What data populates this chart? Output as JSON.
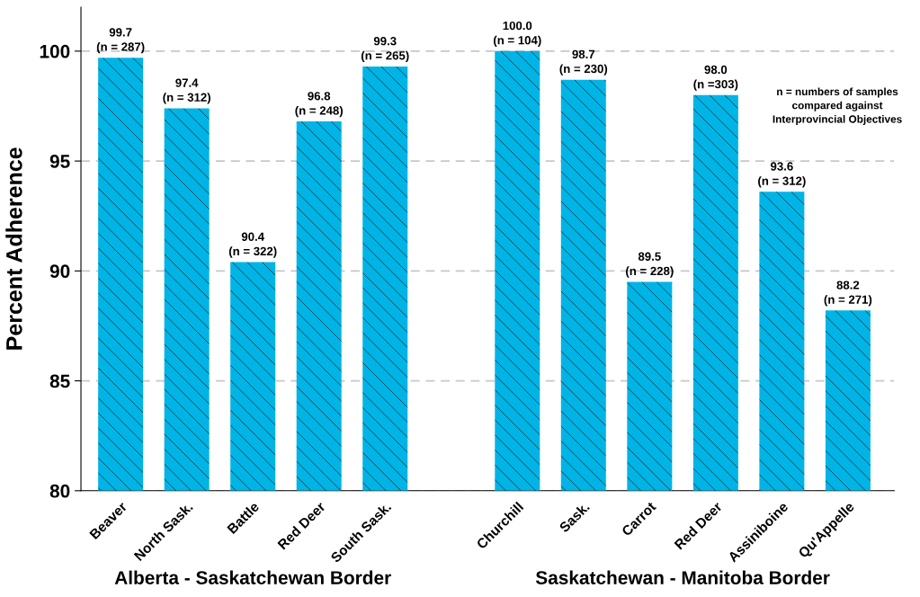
{
  "chart_data": {
    "type": "bar",
    "ylabel": "Percent Adherence",
    "categories": [
      "Beaver",
      "North Sask.",
      "Battle",
      "Red Deer",
      "South Sask.",
      null,
      "Churchill",
      "Sask.",
      "Carrot",
      "Red Deer",
      "Assiniboine",
      "Qu'Appelle"
    ],
    "values": [
      99.7,
      97.4,
      90.4,
      96.8,
      99.3,
      null,
      100.0,
      98.7,
      89.5,
      98.0,
      93.6,
      88.2
    ],
    "value_labels": [
      "99.7\n(n = 287)",
      "97.4\n(n = 312)",
      "90.4\n(n = 322)",
      "96.8\n(n = 248)",
      "99.3\n(n = 265)",
      null,
      "100.0\n(n = 104)",
      "98.7\n(n = 230)",
      "89.5\n(n = 228)",
      "98.0\n(n =303)",
      "93.6\n(n = 312)",
      "88.2\n(n = 271)"
    ],
    "color": "#00b4e6",
    "ylim": [
      80,
      102
    ],
    "yticks": [
      80,
      85,
      90,
      95,
      100
    ],
    "grid": "y",
    "annotations": [
      "Alberta - Saskatchewan Border",
      "Saskatchewan - Manitoba Border",
      "n = numbers of samples\ncompared against\nInterprovincial Objectives"
    ]
  }
}
